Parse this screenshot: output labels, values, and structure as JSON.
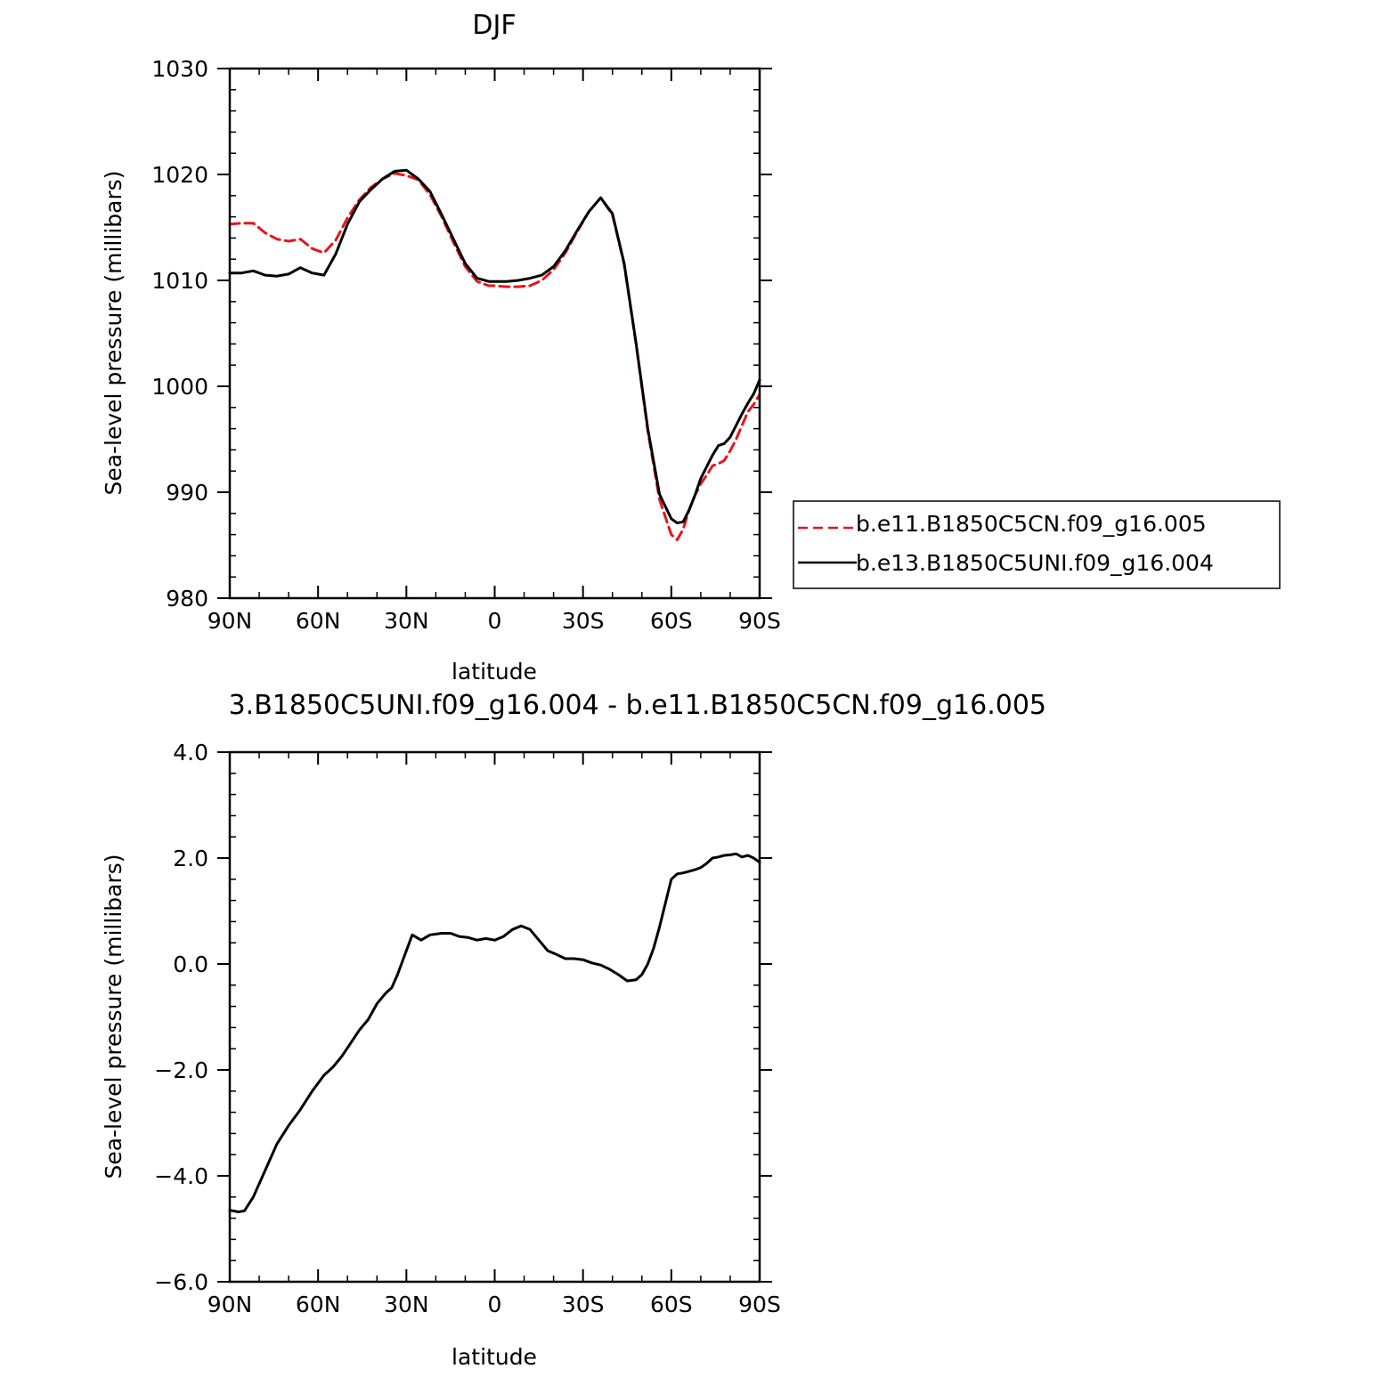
{
  "chart_data": [
    {
      "type": "line",
      "title": "DJF",
      "xlabel": "latitude",
      "ylabel": "Sea-level pressure (millibars)",
      "xlim": [
        90,
        -90
      ],
      "ylim": [
        980,
        1030
      ],
      "x_ticks": [
        {
          "value": 90,
          "label": "90N"
        },
        {
          "value": 60,
          "label": "60N"
        },
        {
          "value": 30,
          "label": "30N"
        },
        {
          "value": 0,
          "label": "0"
        },
        {
          "value": -30,
          "label": "30S"
        },
        {
          "value": -60,
          "label": "60S"
        },
        {
          "value": -90,
          "label": "90S"
        }
      ],
      "y_ticks": [
        {
          "value": 1030,
          "label": "1030"
        },
        {
          "value": 1020,
          "label": "1020"
        },
        {
          "value": 1010,
          "label": "1010"
        },
        {
          "value": 1000,
          "label": "1000"
        },
        {
          "value": 990,
          "label": "990"
        },
        {
          "value": 980,
          "label": "980"
        }
      ],
      "legend_position": "right",
      "series": [
        {
          "name": "b.e11.B1850C5CN.f09_g16.005",
          "color": "#e8141c",
          "dash": "dashed",
          "x": [
            90,
            86,
            82,
            78,
            74,
            70,
            66,
            62,
            58,
            54,
            50,
            46,
            42,
            38,
            34,
            30,
            26,
            22,
            18,
            14,
            10,
            6,
            2,
            0,
            -4,
            -8,
            -12,
            -16,
            -20,
            -24,
            -28,
            -32,
            -36,
            -40,
            -44,
            -48,
            -52,
            -56,
            -60,
            -62,
            -64,
            -66,
            -68,
            -70,
            -72,
            -74,
            -76,
            -78,
            -80,
            -82,
            -84,
            -86,
            -88,
            -90
          ],
          "y": [
            1015.3,
            1015.4,
            1015.4,
            1014.5,
            1013.9,
            1013.7,
            1013.9,
            1013.0,
            1012.6,
            1013.8,
            1015.9,
            1017.6,
            1018.8,
            1019.6,
            1020.1,
            1019.9,
            1019.5,
            1018.1,
            1016.0,
            1013.6,
            1011.3,
            1009.9,
            1009.5,
            1009.5,
            1009.4,
            1009.4,
            1009.5,
            1010.0,
            1011.0,
            1012.6,
            1014.6,
            1016.5,
            1017.8,
            1016.2,
            1011.5,
            1004.0,
            995.8,
            989.3,
            986.0,
            985.5,
            986.5,
            988.3,
            989.7,
            990.8,
            991.6,
            992.5,
            992.7,
            993.0,
            993.9,
            995.0,
            996.3,
            997.6,
            998.3,
            999.2
          ]
        },
        {
          "name": "b.e13.B1850C5UNI.f09_g16.004",
          "color": "#000000",
          "dash": "solid",
          "x": [
            90,
            86,
            82,
            78,
            74,
            70,
            66,
            62,
            58,
            54,
            50,
            46,
            42,
            38,
            34,
            30,
            26,
            22,
            18,
            14,
            10,
            6,
            2,
            0,
            -4,
            -8,
            -12,
            -16,
            -20,
            -24,
            -28,
            -32,
            -36,
            -40,
            -44,
            -48,
            -52,
            -56,
            -60,
            -62,
            -64,
            -66,
            -68,
            -70,
            -72,
            -74,
            -76,
            -78,
            -80,
            -82,
            -84,
            -86,
            -88,
            -90
          ],
          "y": [
            1010.7,
            1010.7,
            1010.9,
            1010.5,
            1010.4,
            1010.6,
            1011.2,
            1010.7,
            1010.5,
            1012.5,
            1015.3,
            1017.4,
            1018.6,
            1019.6,
            1020.3,
            1020.4,
            1019.6,
            1018.4,
            1016.2,
            1013.9,
            1011.6,
            1010.2,
            1009.9,
            1009.9,
            1009.9,
            1010.0,
            1010.2,
            1010.5,
            1011.3,
            1012.8,
            1014.7,
            1016.5,
            1017.8,
            1016.3,
            1011.6,
            1004.1,
            996.0,
            989.8,
            987.5,
            987.1,
            987.2,
            988.3,
            989.7,
            991.3,
            992.4,
            993.5,
            994.4,
            994.6,
            995.2,
            996.3,
            997.4,
            998.4,
            999.3,
            1000.6
          ]
        }
      ]
    },
    {
      "type": "line",
      "title": "3.B1850C5UNI.f09_g16.004 - b.e11.B1850C5CN.f09_g16.005",
      "xlabel": "latitude",
      "ylabel": "Sea-level pressure (millibars)",
      "xlim": [
        90,
        -90
      ],
      "ylim": [
        -6,
        4
      ],
      "x_ticks": [
        {
          "value": 90,
          "label": "90N"
        },
        {
          "value": 60,
          "label": "60N"
        },
        {
          "value": 30,
          "label": "30N"
        },
        {
          "value": 0,
          "label": "0"
        },
        {
          "value": -30,
          "label": "30S"
        },
        {
          "value": -60,
          "label": "60S"
        },
        {
          "value": -90,
          "label": "90S"
        }
      ],
      "y_ticks": [
        {
          "value": 4,
          "label": "4.0"
        },
        {
          "value": 2,
          "label": "2.0"
        },
        {
          "value": 0,
          "label": "0.0"
        },
        {
          "value": -2,
          "label": "−2.0"
        },
        {
          "value": -4,
          "label": "−4.0"
        },
        {
          "value": -6,
          "label": "−6.0"
        }
      ],
      "series": [
        {
          "color": "#000000",
          "dash": "solid",
          "x": [
            90,
            87,
            85,
            82,
            78,
            74,
            70,
            66,
            62,
            58,
            55,
            52,
            49,
            46,
            43,
            40,
            37,
            35,
            33,
            31,
            28,
            25,
            22,
            18,
            15,
            12,
            9,
            6,
            3,
            0,
            -3,
            -6,
            -9,
            -12,
            -15,
            -18,
            -21,
            -24,
            -27,
            -30,
            -33,
            -36,
            -39,
            -42,
            -45,
            -48,
            -50,
            -52,
            -54,
            -56,
            -58,
            -60,
            -62,
            -64,
            -66,
            -68,
            -70,
            -72,
            -74,
            -76,
            -78,
            -80,
            -82,
            -84,
            -86,
            -88,
            -90
          ],
          "y": [
            -4.65,
            -4.68,
            -4.66,
            -4.4,
            -3.9,
            -3.4,
            -3.05,
            -2.75,
            -2.4,
            -2.1,
            -1.95,
            -1.75,
            -1.5,
            -1.25,
            -1.05,
            -0.75,
            -0.55,
            -0.45,
            -0.2,
            0.1,
            0.55,
            0.45,
            0.55,
            0.58,
            0.58,
            0.52,
            0.5,
            0.45,
            0.48,
            0.45,
            0.52,
            0.65,
            0.72,
            0.65,
            0.45,
            0.25,
            0.18,
            0.1,
            0.1,
            0.08,
            0.02,
            -0.02,
            -0.1,
            -0.2,
            -0.32,
            -0.3,
            -0.2,
            0.0,
            0.3,
            0.7,
            1.15,
            1.6,
            1.7,
            1.72,
            1.75,
            1.78,
            1.82,
            1.9,
            2.0,
            2.02,
            2.05,
            2.06,
            2.08,
            2.02,
            2.05,
            2.0,
            1.92
          ]
        }
      ]
    }
  ]
}
